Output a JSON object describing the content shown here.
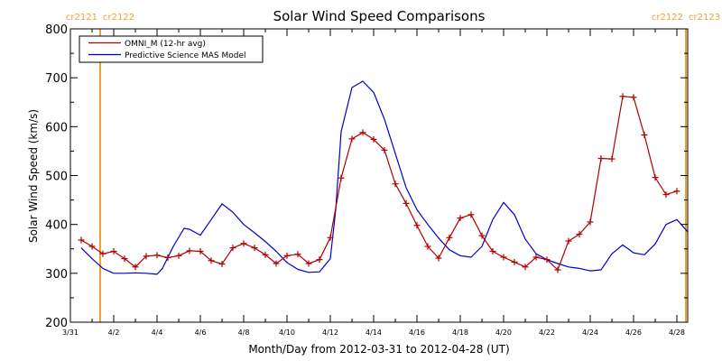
{
  "chart_data": {
    "type": "line",
    "title": "Solar Wind Speed Comparisons",
    "xlabel": "Month/Day from 2012-03-31 to 2012-04-28 (UT)",
    "ylabel": "Solar Wind Speed (km/s)",
    "xlim": [
      "2012-03-31",
      "2012-04-28 12:00"
    ],
    "ylim": [
      200,
      800
    ],
    "grid": false,
    "legend_position": "top-left",
    "x_ticks": [
      {
        "date": "2012-03-31",
        "label": "3/31"
      },
      {
        "date": "2012-04-02",
        "label": "4/2"
      },
      {
        "date": "2012-04-04",
        "label": "4/4"
      },
      {
        "date": "2012-04-06",
        "label": "4/6"
      },
      {
        "date": "2012-04-08",
        "label": "4/8"
      },
      {
        "date": "2012-04-10",
        "label": "4/10"
      },
      {
        "date": "2012-04-12",
        "label": "4/12"
      },
      {
        "date": "2012-04-14",
        "label": "4/14"
      },
      {
        "date": "2012-04-16",
        "label": "4/16"
      },
      {
        "date": "2012-04-18",
        "label": "4/18"
      },
      {
        "date": "2012-04-20",
        "label": "4/20"
      },
      {
        "date": "2012-04-22",
        "label": "4/22"
      },
      {
        "date": "2012-04-24",
        "label": "4/24"
      },
      {
        "date": "2012-04-26",
        "label": "4/26"
      },
      {
        "date": "2012-04-28",
        "label": "4/28"
      }
    ],
    "y_ticks": [
      200,
      300,
      400,
      500,
      600,
      700,
      800
    ],
    "rotation_markers": [
      {
        "date": "2012-04-01 09:00",
        "left_label": "cr2121",
        "right_label": "cr2122",
        "color": "#f0a030"
      },
      {
        "date": "2012-04-28 10:00",
        "left_label": "cr2122",
        "right_label": "cr2123",
        "color": "#f0a030"
      }
    ],
    "series": [
      {
        "name": "OMNI_M (12-hr avg)",
        "color": "#b00000",
        "markers": true,
        "points": [
          [
            "2012-03-31 12:00",
            368
          ],
          [
            "2012-04-01 00:00",
            355
          ],
          [
            "2012-04-01 12:00",
            340
          ],
          [
            "2012-04-02 00:00",
            345
          ],
          [
            "2012-04-02 12:00",
            330
          ],
          [
            "2012-04-03 00:00",
            313
          ],
          [
            "2012-04-03 12:00",
            335
          ],
          [
            "2012-04-04 00:00",
            337
          ],
          [
            "2012-04-04 12:00",
            332
          ],
          [
            "2012-04-05 00:00",
            336
          ],
          [
            "2012-04-05 12:00",
            346
          ],
          [
            "2012-04-06 00:00",
            345
          ],
          [
            "2012-04-06 12:00",
            326
          ],
          [
            "2012-04-07 00:00",
            319
          ],
          [
            "2012-04-07 12:00",
            352
          ],
          [
            "2012-04-08 00:00",
            361
          ],
          [
            "2012-04-08 12:00",
            352
          ],
          [
            "2012-04-09 00:00",
            338
          ],
          [
            "2012-04-09 12:00",
            320
          ],
          [
            "2012-04-10 00:00",
            336
          ],
          [
            "2012-04-10 12:00",
            339
          ],
          [
            "2012-04-11 00:00",
            320
          ],
          [
            "2012-04-11 12:00",
            328
          ],
          [
            "2012-04-12 00:00",
            373
          ],
          [
            "2012-04-12 12:00",
            495
          ],
          [
            "2012-04-13 00:00",
            575
          ],
          [
            "2012-04-13 12:00",
            588
          ],
          [
            "2012-04-14 00:00",
            574
          ],
          [
            "2012-04-14 12:00",
            552
          ],
          [
            "2012-04-15 00:00",
            483
          ],
          [
            "2012-04-15 12:00",
            443
          ],
          [
            "2012-04-16 00:00",
            398
          ],
          [
            "2012-04-16 12:00",
            355
          ],
          [
            "2012-04-17 00:00",
            331
          ],
          [
            "2012-04-17 12:00",
            373
          ],
          [
            "2012-04-18 00:00",
            413
          ],
          [
            "2012-04-18 12:00",
            420
          ],
          [
            "2012-04-19 00:00",
            377
          ],
          [
            "2012-04-19 12:00",
            345
          ],
          [
            "2012-04-20 00:00",
            333
          ],
          [
            "2012-04-20 12:00",
            323
          ],
          [
            "2012-04-21 00:00",
            313
          ],
          [
            "2012-04-21 12:00",
            333
          ],
          [
            "2012-04-22 00:00",
            328
          ],
          [
            "2012-04-22 12:00",
            307
          ],
          [
            "2012-04-23 00:00",
            366
          ],
          [
            "2012-04-23 12:00",
            380
          ],
          [
            "2012-04-24 00:00",
            405
          ],
          [
            "2012-04-24 12:00",
            535
          ],
          [
            "2012-04-25 00:00",
            534
          ],
          [
            "2012-04-25 12:00",
            662
          ],
          [
            "2012-04-26 00:00",
            660
          ],
          [
            "2012-04-26 12:00",
            583
          ],
          [
            "2012-04-27 00:00",
            496
          ],
          [
            "2012-04-27 12:00",
            461
          ],
          [
            "2012-04-28 00:00",
            468
          ]
        ]
      },
      {
        "name": "Predictive Science MAS Model",
        "color": "#0000cc",
        "markers": false,
        "points": [
          [
            "2012-03-31 12:00",
            352
          ],
          [
            "2012-04-01 00:00",
            330
          ],
          [
            "2012-04-01 12:00",
            310
          ],
          [
            "2012-04-02 00:00",
            300
          ],
          [
            "2012-04-02 12:00",
            300
          ],
          [
            "2012-04-03 00:00",
            301
          ],
          [
            "2012-04-03 12:00",
            300
          ],
          [
            "2012-04-04 00:00",
            298
          ],
          [
            "2012-04-04 06:00",
            310
          ],
          [
            "2012-04-04 18:00",
            355
          ],
          [
            "2012-04-05 06:00",
            392
          ],
          [
            "2012-04-05 12:00",
            390
          ],
          [
            "2012-04-06 00:00",
            378
          ],
          [
            "2012-04-06 12:00",
            410
          ],
          [
            "2012-04-07 00:00",
            442
          ],
          [
            "2012-04-07 12:00",
            425
          ],
          [
            "2012-04-08 00:00",
            400
          ],
          [
            "2012-04-08 12:00",
            383
          ],
          [
            "2012-04-09 00:00",
            365
          ],
          [
            "2012-04-09 12:00",
            345
          ],
          [
            "2012-04-10 00:00",
            322
          ],
          [
            "2012-04-10 12:00",
            308
          ],
          [
            "2012-04-11 00:00",
            302
          ],
          [
            "2012-04-11 12:00",
            303
          ],
          [
            "2012-04-12 00:00",
            330
          ],
          [
            "2012-04-12 06:00",
            430
          ],
          [
            "2012-04-12 12:00",
            590
          ],
          [
            "2012-04-13 00:00",
            680
          ],
          [
            "2012-04-13 12:00",
            693
          ],
          [
            "2012-04-14 00:00",
            670
          ],
          [
            "2012-04-14 12:00",
            615
          ],
          [
            "2012-04-15 00:00",
            545
          ],
          [
            "2012-04-15 12:00",
            475
          ],
          [
            "2012-04-16 00:00",
            430
          ],
          [
            "2012-04-16 12:00",
            400
          ],
          [
            "2012-04-17 00:00",
            372
          ],
          [
            "2012-04-17 12:00",
            348
          ],
          [
            "2012-04-18 00:00",
            336
          ],
          [
            "2012-04-18 12:00",
            333
          ],
          [
            "2012-04-19 00:00",
            355
          ],
          [
            "2012-04-19 12:00",
            410
          ],
          [
            "2012-04-20 00:00",
            445
          ],
          [
            "2012-04-20 12:00",
            420
          ],
          [
            "2012-04-21 00:00",
            370
          ],
          [
            "2012-04-21 12:00",
            340
          ],
          [
            "2012-04-22 00:00",
            328
          ],
          [
            "2012-04-22 12:00",
            320
          ],
          [
            "2012-04-23 00:00",
            313
          ],
          [
            "2012-04-23 12:00",
            310
          ],
          [
            "2012-04-24 00:00",
            305
          ],
          [
            "2012-04-24 12:00",
            307
          ],
          [
            "2012-04-25 00:00",
            340
          ],
          [
            "2012-04-25 12:00",
            358
          ],
          [
            "2012-04-26 00:00",
            342
          ],
          [
            "2012-04-26 12:00",
            338
          ],
          [
            "2012-04-27 00:00",
            360
          ],
          [
            "2012-04-27 12:00",
            400
          ],
          [
            "2012-04-28 00:00",
            410
          ],
          [
            "2012-04-28 12:00",
            385
          ]
        ]
      }
    ]
  }
}
